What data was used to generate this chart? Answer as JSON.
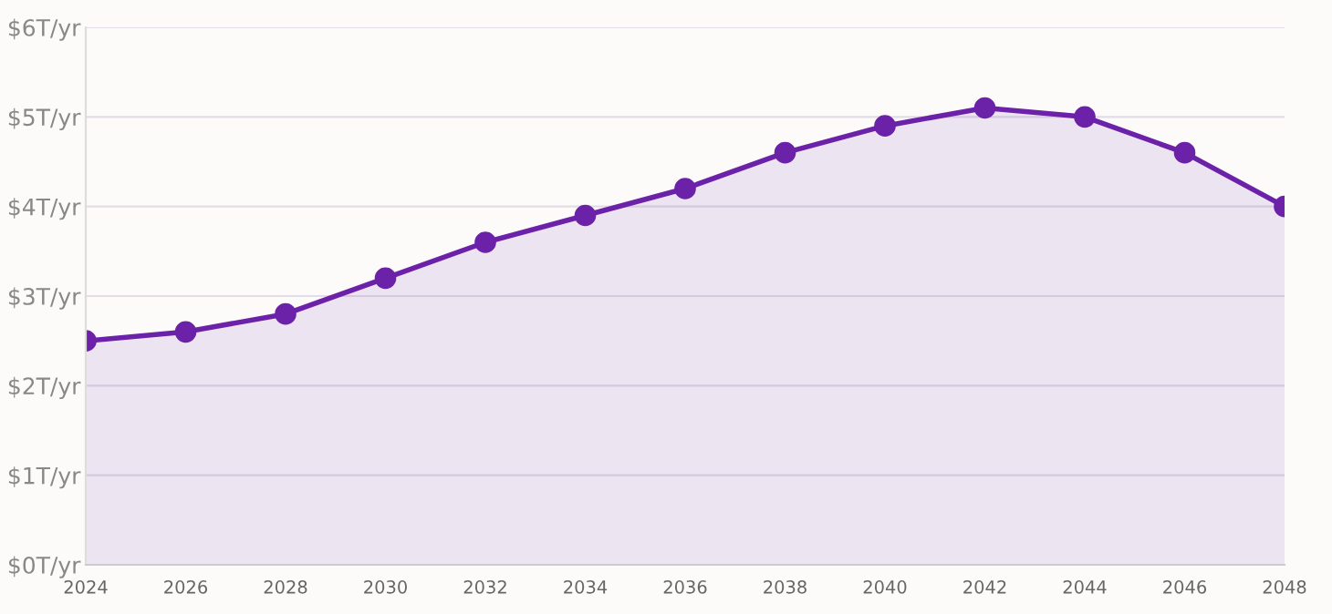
{
  "chart_data": {
    "type": "area",
    "x": [
      2024,
      2026,
      2028,
      2030,
      2032,
      2034,
      2036,
      2038,
      2040,
      2042,
      2044,
      2046,
      2048
    ],
    "series": [
      {
        "color": "#6b21a8",
        "values": [
          2.5,
          2.6,
          2.8,
          3.2,
          3.6,
          3.9,
          4.2,
          4.6,
          4.9,
          5.1,
          5.0,
          4.6,
          4.0
        ]
      }
    ],
    "xlim": [
      2024,
      2048
    ],
    "xticks": [
      2024,
      2026,
      2028,
      2030,
      2032,
      2034,
      2036,
      2038,
      2040,
      2042,
      2044,
      2046,
      2048
    ],
    "ylim": [
      0,
      6
    ],
    "yticks": [
      {
        "value": 0,
        "label": "$0T/yr"
      },
      {
        "value": 1,
        "label": "$1T/yr"
      },
      {
        "value": 2,
        "label": "$2T/yr"
      },
      {
        "value": 3,
        "label": "$3T/yr"
      },
      {
        "value": 4,
        "label": "$4T/yr"
      },
      {
        "value": 5,
        "label": "$5T/yr"
      },
      {
        "value": 6,
        "label": "$6T/yr"
      }
    ],
    "grid": "y",
    "marker": "circle",
    "line_style": "solid",
    "legend": false
  }
}
